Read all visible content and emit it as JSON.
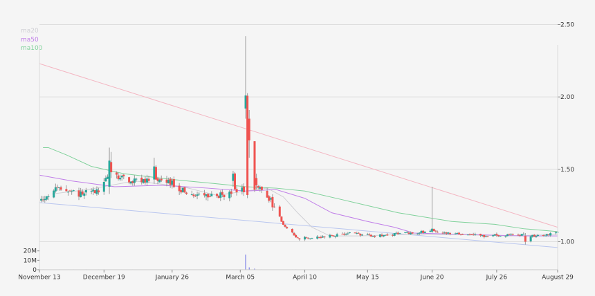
{
  "chart_data": {
    "type": "candlestick",
    "legend": [
      {
        "name": "ma20",
        "color": "#cfcfd4"
      },
      {
        "name": "ma50",
        "color": "#c07ee8"
      },
      {
        "name": "ma100",
        "color": "#7fd19a"
      }
    ],
    "price_axis": {
      "min": 0.95,
      "max": 2.55,
      "ticks": [
        {
          "value": 2.5,
          "label": "2.50"
        },
        {
          "value": 2.0,
          "label": "2.00"
        },
        {
          "value": 1.5,
          "label": "1.50"
        },
        {
          "value": 1.0,
          "label": "1.00"
        }
      ]
    },
    "volume_axis": {
      "min": 0,
      "max": 22000000,
      "ticks": [
        {
          "value": 20000000,
          "label": "20M"
        },
        {
          "value": 10000000,
          "label": "10M"
        },
        {
          "value": 0,
          "label": "0"
        }
      ]
    },
    "x_axis": {
      "start": "2022-11-13",
      "end": "2023-08-29",
      "ticks": [
        {
          "date": "2022-11-13",
          "label": "November 13"
        },
        {
          "date": "2022-12-19",
          "label": "December 19"
        },
        {
          "date": "2023-01-26",
          "label": "January 26"
        },
        {
          "date": "2023-03-05",
          "label": "March 05"
        },
        {
          "date": "2023-04-10",
          "label": "April 10"
        },
        {
          "date": "2023-05-15",
          "label": "May 15"
        },
        {
          "date": "2023-06-20",
          "label": "June 20"
        },
        {
          "date": "2023-07-26",
          "label": "July 26"
        },
        {
          "date": "2023-08-29",
          "label": "August 29"
        }
      ]
    },
    "up_color": "#26a69a",
    "down_color": "#ef5350",
    "trendlines": [
      {
        "color": "#f4b6c2",
        "points": [
          [
            "2022-11-13",
            2.23
          ],
          [
            "2023-08-29",
            1.1
          ]
        ]
      },
      {
        "color": "#b9c6ef",
        "points": [
          [
            "2022-11-13",
            1.27
          ],
          [
            "2023-08-29",
            0.96
          ]
        ]
      }
    ],
    "volume_spikes": [
      {
        "date": "2023-03-08",
        "value": 16000000
      },
      {
        "date": "2023-03-10",
        "value": 2500000
      },
      {
        "date": "2023-03-13",
        "value": 1200000
      }
    ],
    "anchors": [
      [
        "2022-11-13",
        1.28
      ],
      [
        "2022-11-24",
        1.38
      ],
      [
        "2022-12-04",
        1.33
      ],
      [
        "2022-12-16",
        1.36
      ],
      [
        "2022-12-22",
        1.45
      ],
      [
        "2023-01-05",
        1.42
      ],
      [
        "2023-01-15",
        1.43
      ],
      [
        "2023-01-26",
        1.41
      ],
      [
        "2023-02-02",
        1.34
      ],
      [
        "2023-02-14",
        1.31
      ],
      [
        "2023-02-27",
        1.33
      ],
      [
        "2023-03-05",
        1.37
      ],
      [
        "2023-03-10",
        1.33
      ],
      [
        "2023-03-16",
        1.36
      ],
      [
        "2023-03-22",
        1.28
      ],
      [
        "2023-03-29",
        1.12
      ],
      [
        "2023-04-06",
        1.02
      ],
      [
        "2023-04-14",
        1.03
      ],
      [
        "2023-04-25",
        1.04
      ],
      [
        "2023-05-05",
        1.06
      ],
      [
        "2023-05-20",
        1.04
      ],
      [
        "2023-06-05",
        1.06
      ],
      [
        "2023-06-20",
        1.07
      ],
      [
        "2023-07-05",
        1.05
      ],
      [
        "2023-07-20",
        1.04
      ],
      [
        "2023-08-05",
        1.05
      ],
      [
        "2023-08-20",
        1.04
      ],
      [
        "2023-08-29",
        1.06
      ]
    ],
    "special_candles": [
      {
        "date": "2023-03-08",
        "open": 1.92,
        "close": 2.01,
        "high": 2.42,
        "low": 1.85
      },
      {
        "date": "2023-03-10",
        "open": 1.85,
        "close": 1.7,
        "high": 1.91,
        "low": 1.58
      },
      {
        "date": "2022-12-22",
        "open": 1.38,
        "close": 1.56,
        "high": 1.65,
        "low": 1.33
      },
      {
        "date": "2022-12-23",
        "open": 1.55,
        "close": 1.48,
        "high": 1.62,
        "low": 1.44
      },
      {
        "date": "2023-01-16",
        "open": 1.43,
        "close": 1.52,
        "high": 1.58,
        "low": 1.4
      },
      {
        "date": "2023-03-01",
        "open": 1.42,
        "close": 1.47,
        "high": 1.49,
        "low": 1.38
      },
      {
        "date": "2023-03-14",
        "open": 1.44,
        "close": 1.39,
        "high": 1.47,
        "low": 1.36
      },
      {
        "date": "2023-06-20",
        "open": 1.07,
        "close": 1.09,
        "high": 1.38,
        "low": 1.06
      },
      {
        "date": "2023-08-11",
        "open": 1.04,
        "close": 1.0,
        "high": 1.06,
        "low": 0.98
      }
    ],
    "ma_lines": [
      {
        "name": "ma20",
        "points": [
          [
            "2022-11-20",
            1.33
          ],
          [
            "2022-12-10",
            1.36
          ],
          [
            "2023-01-05",
            1.42
          ],
          [
            "2023-02-01",
            1.38
          ],
          [
            "2023-02-20",
            1.32
          ],
          [
            "2023-03-08",
            1.35
          ],
          [
            "2023-03-20",
            1.37
          ],
          [
            "2023-03-29",
            1.31
          ],
          [
            "2023-04-06",
            1.2
          ],
          [
            "2023-04-14",
            1.1
          ],
          [
            "2023-04-24",
            1.04
          ],
          [
            "2023-05-10",
            1.04
          ],
          [
            "2023-06-05",
            1.05
          ],
          [
            "2023-07-01",
            1.05
          ],
          [
            "2023-08-01",
            1.04
          ],
          [
            "2023-08-29",
            1.05
          ]
        ]
      },
      {
        "name": "ma50",
        "points": [
          [
            "2022-11-13",
            1.46
          ],
          [
            "2022-12-01",
            1.42
          ],
          [
            "2022-12-25",
            1.38
          ],
          [
            "2023-01-20",
            1.39
          ],
          [
            "2023-02-15",
            1.37
          ],
          [
            "2023-03-08",
            1.35
          ],
          [
            "2023-03-25",
            1.36
          ],
          [
            "2023-04-10",
            1.3
          ],
          [
            "2023-04-25",
            1.2
          ],
          [
            "2023-05-15",
            1.14
          ],
          [
            "2023-05-30",
            1.1
          ],
          [
            "2023-06-10",
            1.06
          ],
          [
            "2023-07-10",
            1.05
          ],
          [
            "2023-08-10",
            1.04
          ],
          [
            "2023-08-29",
            1.04
          ]
        ]
      },
      {
        "name": "ma100",
        "points": [
          [
            "2022-11-15",
            1.65
          ],
          [
            "2022-11-18",
            1.65
          ],
          [
            "2022-11-28",
            1.6
          ],
          [
            "2022-12-12",
            1.52
          ],
          [
            "2022-12-30",
            1.47
          ],
          [
            "2023-01-26",
            1.43
          ],
          [
            "2023-02-20",
            1.4
          ],
          [
            "2023-03-08",
            1.38
          ],
          [
            "2023-03-25",
            1.37
          ],
          [
            "2023-04-10",
            1.35
          ],
          [
            "2023-05-01",
            1.29
          ],
          [
            "2023-06-01",
            1.2
          ],
          [
            "2023-07-01",
            1.14
          ],
          [
            "2023-07-25",
            1.12
          ],
          [
            "2023-08-10",
            1.09
          ],
          [
            "2023-08-29",
            1.07
          ]
        ]
      }
    ]
  }
}
